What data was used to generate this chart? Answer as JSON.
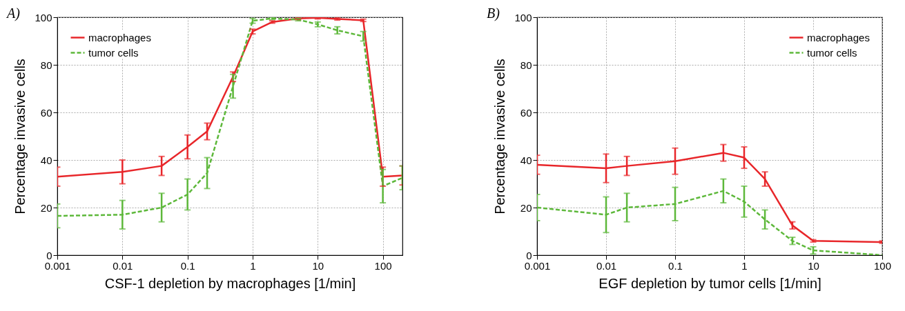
{
  "chart_data": [
    {
      "type": "line",
      "title": "A)",
      "xlabel": "CSF-1 depletion by macrophages [1/min]",
      "ylabel": "Percentage invasive cells",
      "log": "x",
      "grid": true,
      "legend": "top left",
      "marker": "none",
      "x": [
        0.001,
        0.01,
        0.04,
        0.1,
        0.2,
        0.5,
        1,
        2,
        5,
        10,
        20,
        50,
        100,
        200
      ],
      "xlim": [
        0.001,
        200
      ],
      "xticks": [
        0.001,
        0.01,
        0.1,
        1,
        10,
        100
      ],
      "ylim": [
        0,
        100
      ],
      "yticks": [
        0,
        20,
        40,
        60,
        80,
        100
      ],
      "series": [
        {
          "name": "macrophages",
          "color": "#e8262a",
          "line_style": "solid",
          "values": [
            33,
            35,
            37.5,
            45.5,
            52,
            75,
            94,
            98,
            99.5,
            99.8,
            99.3,
            98.7,
            33,
            33.5
          ],
          "errors": [
            4,
            5,
            4,
            5,
            3.5,
            2,
            1,
            0.5,
            0.5,
            0.5,
            0.5,
            0.5,
            4,
            4
          ]
        },
        {
          "name": "tumor cells",
          "color": "#5db83a",
          "line_style": "dashed",
          "values": [
            16.5,
            17,
            20,
            25.5,
            34.5,
            71,
            98.5,
            99.5,
            99,
            97,
            94.5,
            92,
            29,
            32.5
          ],
          "errors": [
            5,
            6,
            6,
            6.5,
            6.5,
            5,
            1,
            0.5,
            0.5,
            1,
            1.5,
            2,
            7,
            5
          ]
        }
      ]
    },
    {
      "type": "line",
      "title": "B)",
      "xlabel": "EGF depletion by tumor cells [1/min]",
      "ylabel": "Percentage invasive cells",
      "log": "x",
      "grid": true,
      "legend": "top right",
      "marker": "none",
      "x": [
        0.001,
        0.01,
        0.02,
        0.1,
        0.5,
        1,
        2,
        5,
        10,
        100
      ],
      "xlim": [
        0.001,
        100
      ],
      "xticks": [
        0.001,
        0.01,
        0.1,
        1,
        10,
        100
      ],
      "ylim": [
        0,
        100
      ],
      "yticks": [
        0,
        20,
        40,
        60,
        80,
        100
      ],
      "series": [
        {
          "name": "macrophages",
          "color": "#e8262a",
          "line_style": "solid",
          "values": [
            38,
            36.5,
            37.5,
            39.5,
            43,
            41,
            32,
            12.5,
            6,
            5.5
          ],
          "errors": [
            4,
            6,
            4,
            5.5,
            3.5,
            4.5,
            3,
            1.5,
            0.5,
            0.5
          ]
        },
        {
          "name": "tumor cells",
          "color": "#5db83a",
          "line_style": "dashed",
          "values": [
            20,
            17,
            20,
            21.5,
            27,
            22.5,
            15,
            6,
            2,
            0
          ],
          "errors": [
            5.5,
            7.5,
            6,
            7,
            5,
            6.5,
            4,
            1.5,
            1.5,
            null
          ]
        }
      ]
    }
  ]
}
